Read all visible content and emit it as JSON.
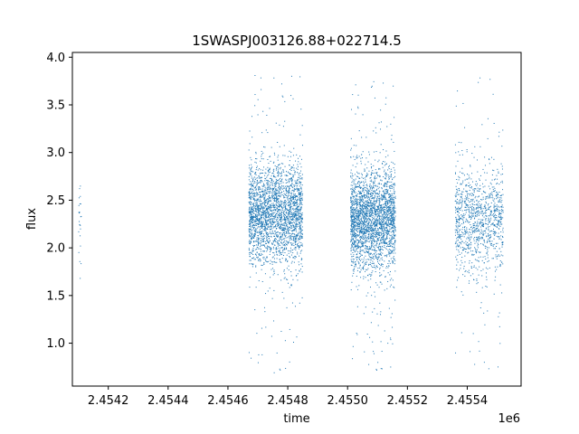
{
  "chart_data": {
    "type": "scatter",
    "title": "1SWASPJ003126.88+022714.5",
    "xlabel": "time",
    "ylabel": "flux",
    "x_offset_label": "1e6",
    "xlim": [
      2.45408,
      2.45558
    ],
    "ylim": [
      0.55,
      4.05
    ],
    "x_ticks": [
      2.4542,
      2.4544,
      2.4546,
      2.4548,
      2.455,
      2.4552,
      2.4554
    ],
    "x_tick_labels": [
      "2.4542",
      "2.4544",
      "2.4546",
      "2.4548",
      "2.4550",
      "2.4552",
      "2.4554"
    ],
    "y_ticks": [
      1.0,
      1.5,
      2.0,
      2.5,
      3.0,
      3.5,
      4.0
    ],
    "y_tick_labels": [
      "1.0",
      "1.5",
      "2.0",
      "2.5",
      "3.0",
      "3.5",
      "4.0"
    ],
    "grid": false,
    "marker_color": "#1f77b4",
    "clusters": [
      {
        "x_range": [
          2.4541,
          2.45411
        ],
        "y_center": 2.3,
        "y_spread": 0.25,
        "y_range": [
          1.68,
          2.88
        ],
        "count": 25
      },
      {
        "x_range": [
          2.45467,
          2.45485
        ],
        "y_center": 2.35,
        "y_spread": 0.26,
        "y_range": [
          0.68,
          3.88
        ],
        "count": 2600
      },
      {
        "x_range": [
          2.45501,
          2.45516
        ],
        "y_center": 2.3,
        "y_spread": 0.26,
        "y_range": [
          0.68,
          3.78
        ],
        "count": 2600
      },
      {
        "x_range": [
          2.45536,
          2.45552
        ],
        "y_center": 2.3,
        "y_spread": 0.28,
        "y_range": [
          0.68,
          3.82
        ],
        "count": 1100
      }
    ]
  }
}
